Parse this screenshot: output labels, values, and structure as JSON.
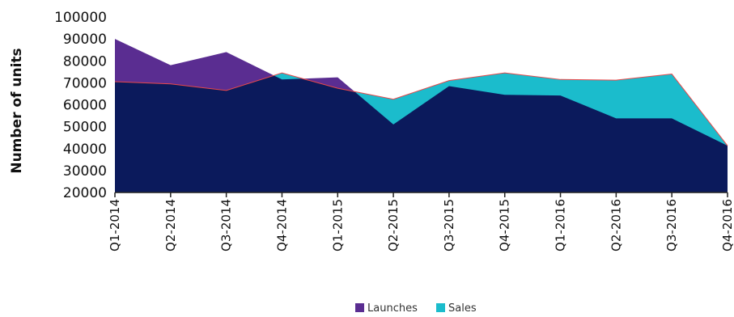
{
  "chart_data": {
    "type": "area",
    "title": "",
    "xlabel": "",
    "ylabel": "Number of units",
    "ylim": [
      20000,
      100000
    ],
    "yticks": [
      20000,
      30000,
      40000,
      50000,
      60000,
      70000,
      80000,
      90000,
      100000
    ],
    "ytick_labels": [
      "20000",
      "30000",
      "40000",
      "50000",
      "60000",
      "70000",
      "80000",
      "90000",
      "100000"
    ],
    "categories": [
      "Q1-2014",
      "Q2-2014",
      "Q3-2014",
      "Q4-2014",
      "Q1-2015",
      "Q2-2015",
      "Q3-2015",
      "Q4-2015",
      "Q1-2016",
      "Q2-2016",
      "Q3-2016",
      "Q4-2016"
    ],
    "series": [
      {
        "name": "Launches",
        "color": "#5a2d91",
        "values": [
          90000,
          78000,
          84000,
          71500,
          72500,
          51000,
          68500,
          64500,
          64200,
          53800,
          53800,
          41300
        ]
      },
      {
        "name": "Sales",
        "color": "#1bbccc",
        "values": [
          70500,
          69500,
          66500,
          74500,
          67500,
          62500,
          71000,
          74500,
          71500,
          71200,
          74000,
          41300
        ]
      }
    ],
    "overlap_color": "#0b1a5c",
    "outline_color": "#e8484a",
    "legend_position": "bottom-center",
    "grid": false
  }
}
